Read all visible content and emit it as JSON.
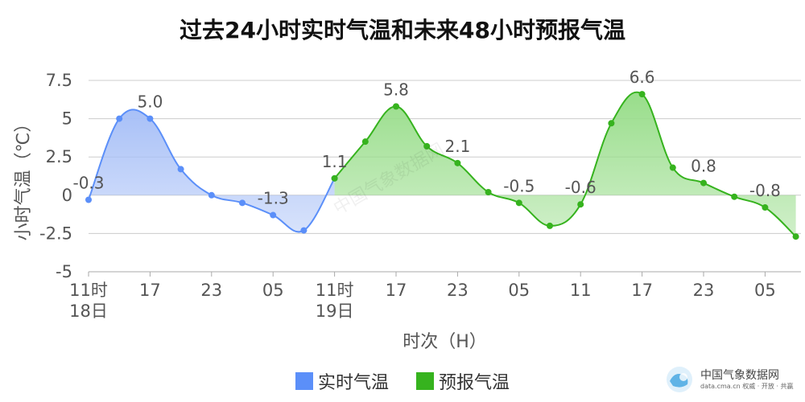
{
  "chart_data": {
    "type": "area",
    "title": "过去24小时实时气温和未来48小时预报气温",
    "xlabel": "时次（H）",
    "ylabel": "小时气温（℃）",
    "ylim": [
      -5,
      7.5
    ],
    "yticks": [
      "7.5",
      "5",
      "2.5",
      "0",
      "-2.5",
      "-5"
    ],
    "ytick_values": [
      7.5,
      5,
      2.5,
      0,
      -2.5,
      -5
    ],
    "xticks": [
      {
        "index": 0,
        "label": "11时",
        "sub": "18日"
      },
      {
        "index": 2,
        "label": "17",
        "sub": ""
      },
      {
        "index": 4,
        "label": "23",
        "sub": ""
      },
      {
        "index": 6,
        "label": "05",
        "sub": ""
      },
      {
        "index": 8,
        "label": "11时",
        "sub": "19日"
      },
      {
        "index": 10,
        "label": "17",
        "sub": ""
      },
      {
        "index": 12,
        "label": "23",
        "sub": ""
      },
      {
        "index": 14,
        "label": "05",
        "sub": ""
      },
      {
        "index": 16,
        "label": "11",
        "sub": ""
      },
      {
        "index": 18,
        "label": "17",
        "sub": ""
      },
      {
        "index": 20,
        "label": "23",
        "sub": ""
      },
      {
        "index": 22,
        "label": "05",
        "sub": ""
      }
    ],
    "grid": true,
    "legend_position": "bottom",
    "series": [
      {
        "name": "实时气温",
        "color": "#5b8ff9",
        "fill": "#a8c0f7",
        "start_index": 0,
        "values": [
          -0.3,
          5.0,
          5.0,
          1.7,
          0.0,
          -0.5,
          -1.3,
          -2.3,
          1.1
        ],
        "labels": [
          {
            "i": 0,
            "text": "-0.3"
          },
          {
            "i": 2,
            "text": "5.0"
          },
          {
            "i": 6,
            "text": "-1.3"
          }
        ]
      },
      {
        "name": "预报气温",
        "color": "#36b31e",
        "fill": "#98dd8a",
        "start_index": 8,
        "values": [
          1.1,
          3.5,
          5.8,
          3.2,
          2.1,
          0.2,
          -0.5,
          -2.0,
          -0.6,
          4.7,
          6.6,
          1.8,
          0.8,
          -0.1,
          -0.8,
          -2.7
        ],
        "labels": [
          {
            "i": 8,
            "text": "1.1"
          },
          {
            "i": 10,
            "text": "5.8"
          },
          {
            "i": 12,
            "text": "2.1"
          },
          {
            "i": 14,
            "text": "-0.5"
          },
          {
            "i": 16,
            "text": "-0.6"
          },
          {
            "i": 18,
            "text": "6.6"
          },
          {
            "i": 20,
            "text": "0.8"
          },
          {
            "i": 22,
            "text": "-0.8"
          }
        ]
      }
    ]
  },
  "legend": [
    {
      "label": "实时气温",
      "color": "#5b8ff9"
    },
    {
      "label": "预报气温",
      "color": "#36b31e"
    }
  ],
  "logo": {
    "name": "中国气象数据网",
    "sub": "data.cma.cn 权威 · 开放 · 共赢"
  },
  "watermark": "中国气象数据网"
}
